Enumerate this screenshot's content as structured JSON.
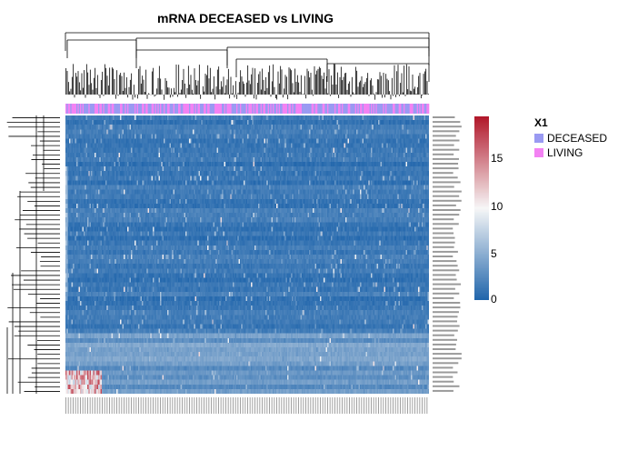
{
  "title": "mRNA DECEASED vs LIVING",
  "chart_data": {
    "type": "heatmap",
    "title": "mRNA DECEASED vs LIVING",
    "xlabel": "",
    "ylabel": "",
    "n_rows": 60,
    "n_cols": 300,
    "value_range": [
      0,
      19
    ],
    "colorbar_ticks": [
      "15",
      "10",
      "5",
      "0"
    ],
    "colorbar_values": [
      15,
      10,
      5,
      0
    ],
    "colors": {
      "low": "#2166ac",
      "mid": "#f7f7f7",
      "high": "#b2182b"
    },
    "legend": {
      "title": "X1",
      "items": [
        {
          "label": "DECEASED",
          "color": "#9a9af2"
        },
        {
          "label": "LIVING",
          "color": "#f382f3"
        }
      ],
      "position": "right"
    },
    "row_dendrogram": true,
    "col_dendrogram": true
  }
}
